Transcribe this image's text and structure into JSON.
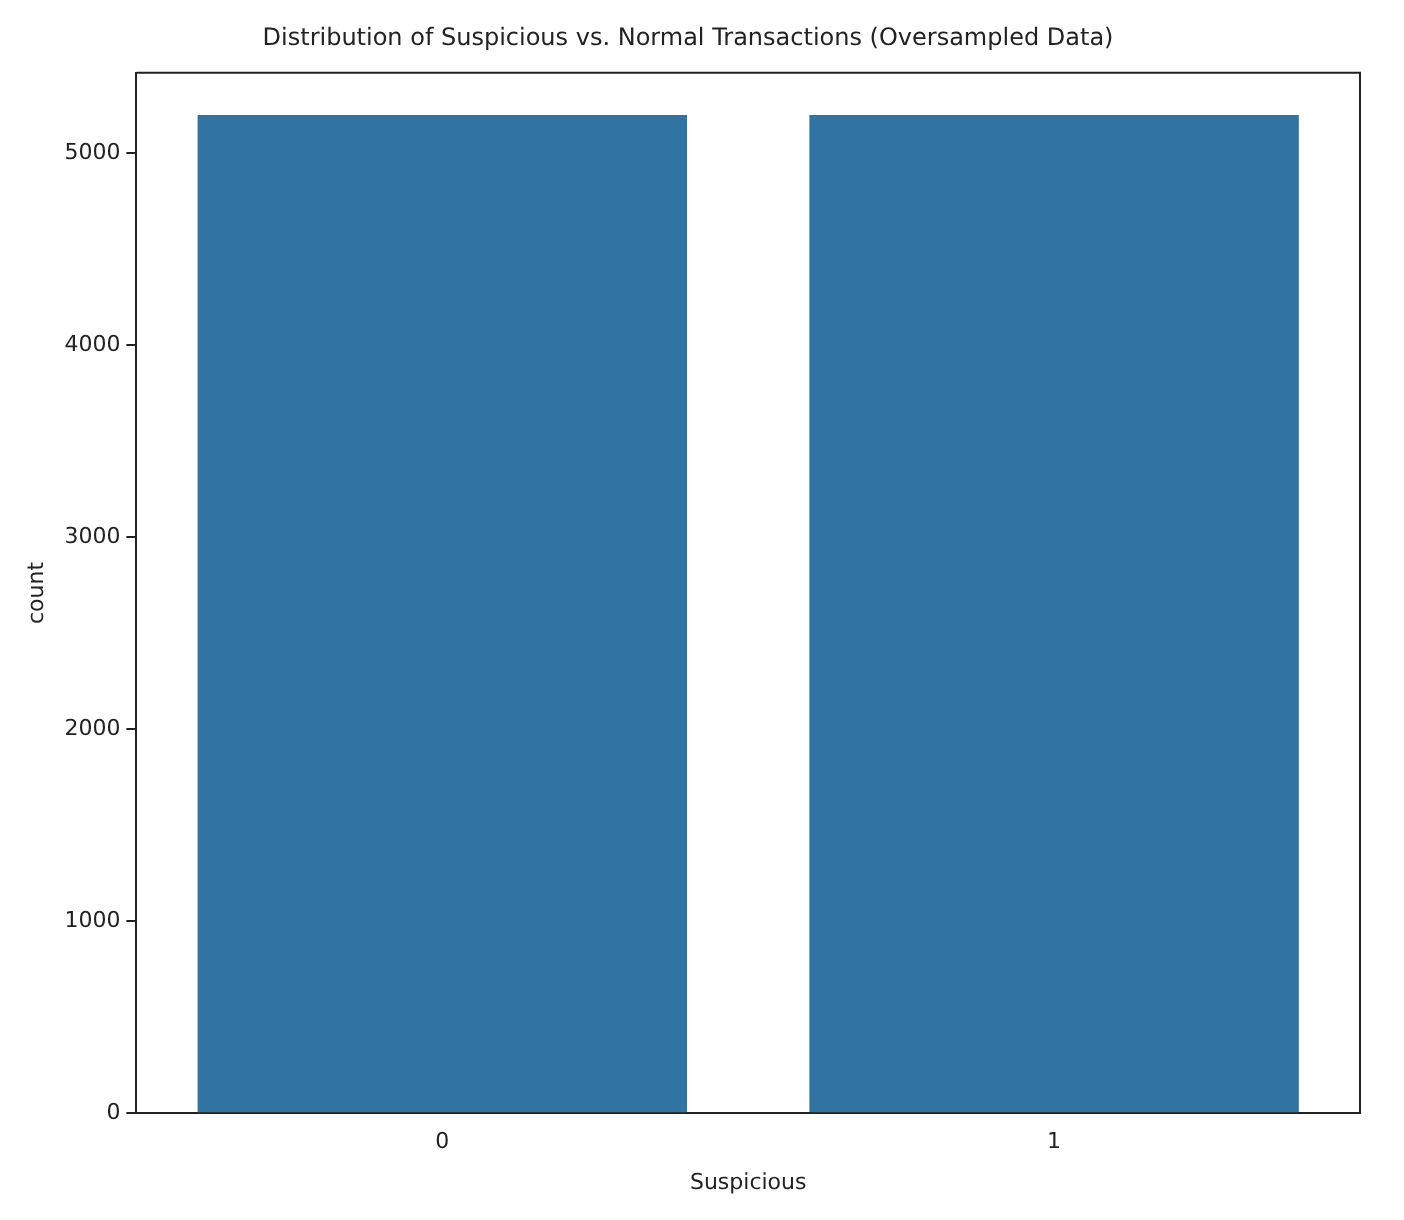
{
  "chart_data": {
    "type": "bar",
    "title": "Distribution of Suspicious vs. Normal Transactions (Oversampled Data)",
    "xlabel": "Suspicious",
    "ylabel": "count",
    "categories": [
      "0",
      "1"
    ],
    "values": [
      5200,
      5200
    ],
    "color": "#3274a1",
    "ylim": [
      0,
      5420
    ],
    "yticks": [
      0,
      1000,
      2000,
      3000,
      4000,
      5000
    ],
    "grid": false,
    "legend": false
  }
}
